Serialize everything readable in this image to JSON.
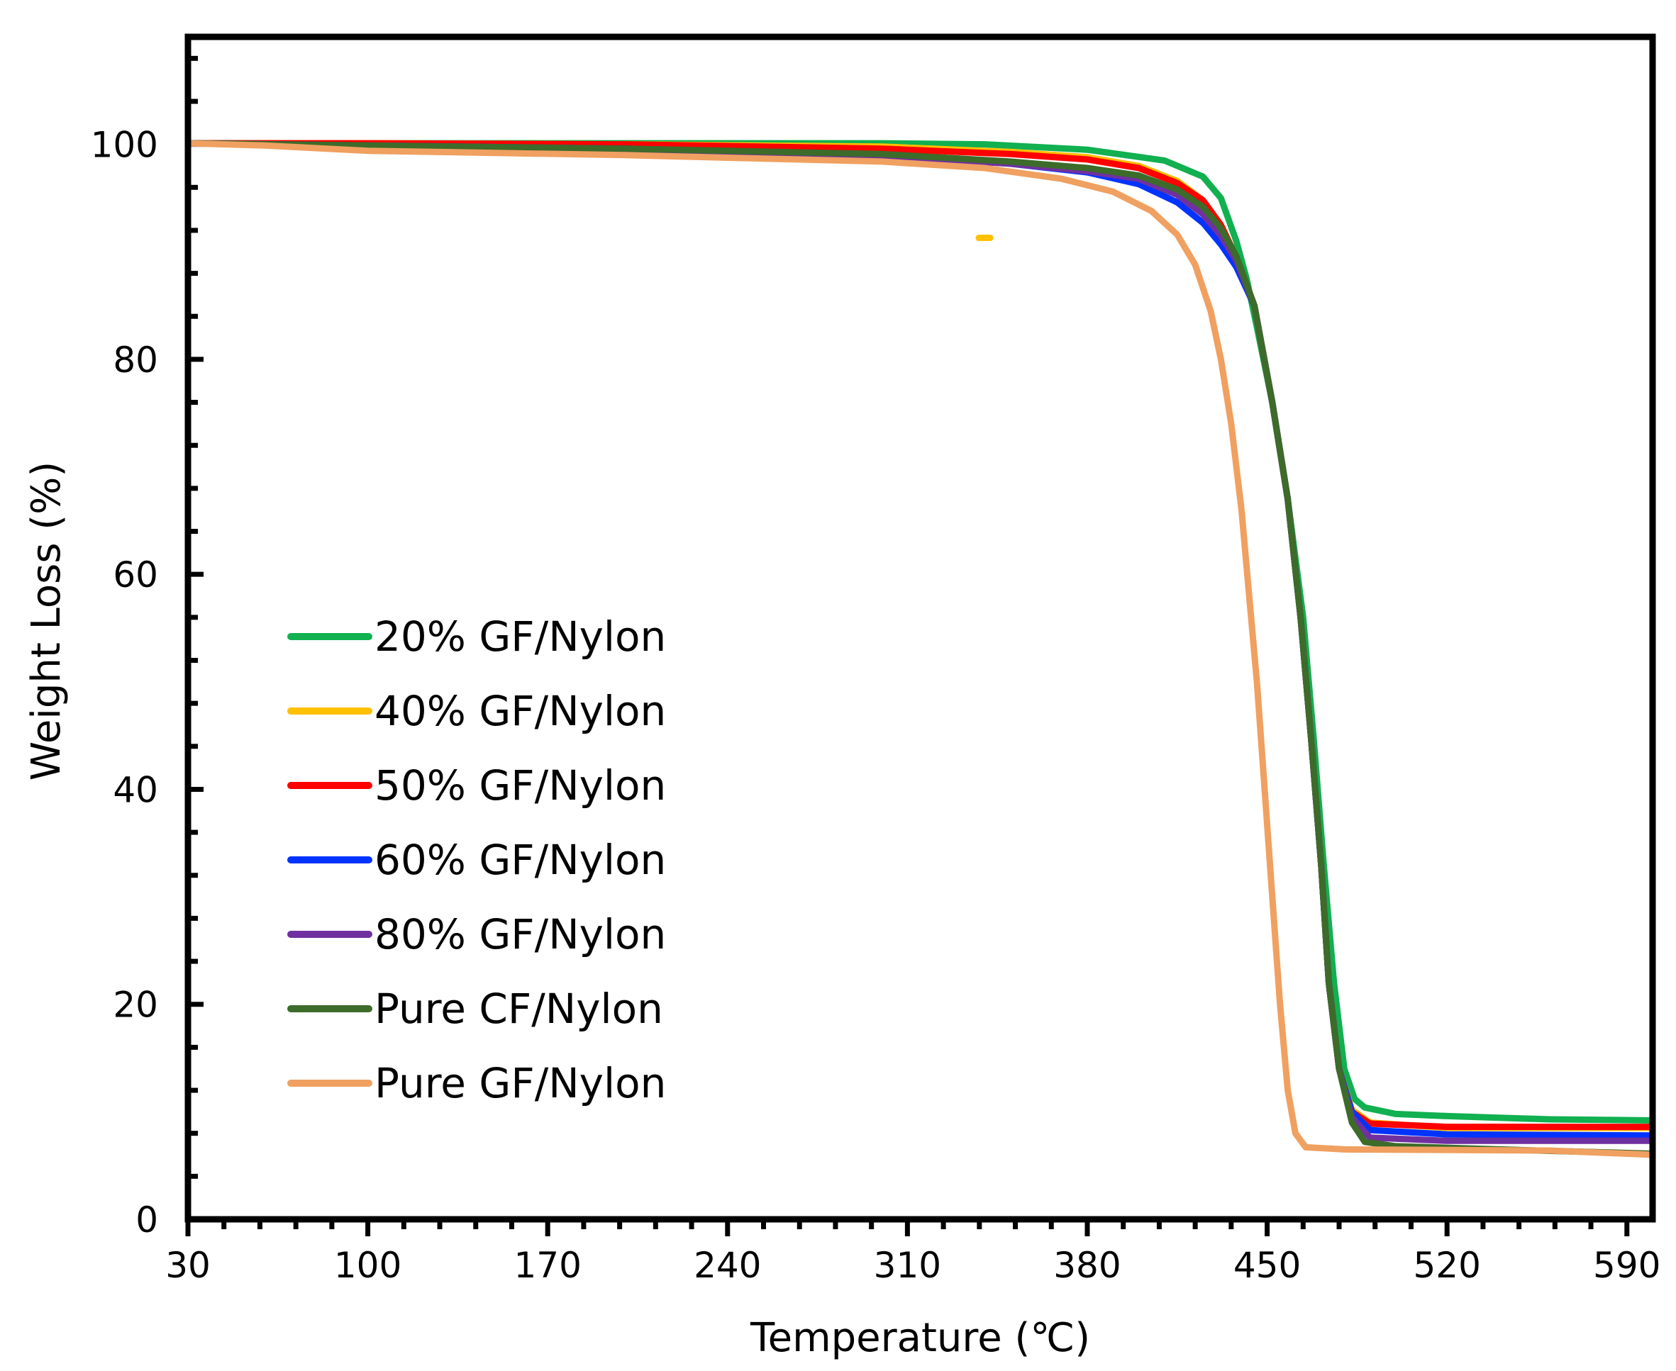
{
  "chart_data": {
    "type": "line",
    "title": "",
    "xlabel": "Temperature (℃)",
    "ylabel": "Weight Loss  (%)",
    "xlim": [
      30,
      600
    ],
    "ylim": [
      0,
      110
    ],
    "xticks": [
      30,
      100,
      170,
      240,
      310,
      380,
      450,
      520,
      590
    ],
    "yticks": [
      0,
      20,
      40,
      60,
      80,
      100
    ],
    "grid": false,
    "legend_position": "center-left",
    "series": [
      {
        "name": "20% GF/Nylon",
        "color": "#11b050",
        "points": [
          [
            30,
            100.1
          ],
          [
            100,
            100.1
          ],
          [
            200,
            100.1
          ],
          [
            300,
            100.1
          ],
          [
            340,
            100
          ],
          [
            380,
            99.5
          ],
          [
            410,
            98.5
          ],
          [
            425,
            97
          ],
          [
            432,
            95
          ],
          [
            438,
            91
          ],
          [
            442,
            87.5
          ],
          [
            446,
            83
          ],
          [
            452,
            76
          ],
          [
            458,
            67
          ],
          [
            464,
            56
          ],
          [
            468,
            45
          ],
          [
            472,
            33
          ],
          [
            476,
            22
          ],
          [
            480,
            14
          ],
          [
            484,
            11.2
          ],
          [
            488,
            10.4
          ],
          [
            500,
            9.8
          ],
          [
            520,
            9.6
          ],
          [
            560,
            9.3
          ],
          [
            600,
            9.2
          ]
        ]
      },
      {
        "name": "40% GF/Nylon",
        "color": "#ffc000",
        "points": [
          [
            30,
            100.1
          ],
          [
            100,
            100.1
          ],
          [
            200,
            100
          ],
          [
            300,
            99.8
          ],
          [
            350,
            99.3
          ],
          [
            380,
            98.8
          ],
          [
            400,
            98
          ],
          [
            415,
            96.6
          ],
          [
            425,
            94.8
          ],
          [
            432,
            92.5
          ],
          [
            438,
            89.5
          ],
          [
            445,
            85
          ],
          [
            452,
            76
          ],
          [
            458,
            67
          ],
          [
            463,
            56
          ],
          [
            467,
            45
          ],
          [
            471,
            33
          ],
          [
            474,
            22
          ],
          [
            478,
            14
          ],
          [
            483,
            10.2
          ],
          [
            490,
            9
          ],
          [
            520,
            8.5
          ],
          [
            600,
            8.5
          ]
        ]
      },
      {
        "name": "50% GF/Nylon",
        "color": "#ff0000",
        "points": [
          [
            30,
            100.1
          ],
          [
            100,
            100.1
          ],
          [
            200,
            100
          ],
          [
            300,
            99.6
          ],
          [
            350,
            99.1
          ],
          [
            380,
            98.6
          ],
          [
            400,
            97.8
          ],
          [
            415,
            96.4
          ],
          [
            425,
            94.8
          ],
          [
            432,
            92.5
          ],
          [
            438,
            89.5
          ],
          [
            445,
            85
          ],
          [
            452,
            76
          ],
          [
            458,
            67
          ],
          [
            463,
            56
          ],
          [
            467,
            45
          ],
          [
            471,
            33
          ],
          [
            474,
            22
          ],
          [
            478,
            14
          ],
          [
            483,
            10
          ],
          [
            490,
            8.9
          ],
          [
            520,
            8.6
          ],
          [
            600,
            8.6
          ]
        ]
      },
      {
        "name": "60% GF/Nylon",
        "color": "#0033ff",
        "points": [
          [
            30,
            100.1
          ],
          [
            100,
            99.9
          ],
          [
            200,
            99.6
          ],
          [
            300,
            99
          ],
          [
            350,
            98.2
          ],
          [
            380,
            97.4
          ],
          [
            400,
            96.3
          ],
          [
            415,
            94.6
          ],
          [
            425,
            92.7
          ],
          [
            432,
            90.7
          ],
          [
            438,
            88.6
          ],
          [
            445,
            85
          ],
          [
            452,
            76
          ],
          [
            458,
            67
          ],
          [
            463,
            56
          ],
          [
            467,
            45
          ],
          [
            471,
            33
          ],
          [
            474,
            22
          ],
          [
            478,
            14
          ],
          [
            483,
            10
          ],
          [
            490,
            8.3
          ],
          [
            520,
            7.9
          ],
          [
            600,
            7.8
          ]
        ]
      },
      {
        "name": "80% GF/Nylon",
        "color": "#7030a0",
        "points": [
          [
            30,
            100.1
          ],
          [
            100,
            99.8
          ],
          [
            200,
            99.4
          ],
          [
            300,
            98.9
          ],
          [
            350,
            98.2
          ],
          [
            380,
            97.5
          ],
          [
            400,
            96.8
          ],
          [
            415,
            95.3
          ],
          [
            425,
            93.5
          ],
          [
            432,
            91.5
          ],
          [
            438,
            89.2
          ],
          [
            445,
            85
          ],
          [
            452,
            76
          ],
          [
            458,
            67
          ],
          [
            463,
            56
          ],
          [
            467,
            45
          ],
          [
            471,
            33
          ],
          [
            474,
            22
          ],
          [
            478,
            14
          ],
          [
            483,
            9.5
          ],
          [
            490,
            7.6
          ],
          [
            520,
            7.3
          ],
          [
            600,
            7.3
          ]
        ]
      },
      {
        "name": "Pure CF/Nylon",
        "color": "#3d6b2a",
        "points": [
          [
            30,
            100.1
          ],
          [
            100,
            99.9
          ],
          [
            200,
            99.6
          ],
          [
            300,
            99.1
          ],
          [
            350,
            98.4
          ],
          [
            380,
            97.8
          ],
          [
            400,
            97.1
          ],
          [
            415,
            95.8
          ],
          [
            425,
            94.2
          ],
          [
            432,
            92.2
          ],
          [
            438,
            89.6
          ],
          [
            445,
            85
          ],
          [
            452,
            76
          ],
          [
            458,
            67
          ],
          [
            463,
            56
          ],
          [
            467,
            45
          ],
          [
            471,
            33
          ],
          [
            474,
            22
          ],
          [
            478,
            14
          ],
          [
            483,
            9
          ],
          [
            488,
            7.2
          ],
          [
            500,
            6.8
          ],
          [
            540,
            6.5
          ],
          [
            600,
            6.1
          ]
        ]
      },
      {
        "name": "Pure GF/Nylon",
        "color": "#f0a060",
        "points": [
          [
            30,
            100.1
          ],
          [
            60,
            99.9
          ],
          [
            100,
            99.4
          ],
          [
            200,
            99
          ],
          [
            300,
            98.4
          ],
          [
            340,
            97.8
          ],
          [
            370,
            96.8
          ],
          [
            390,
            95.6
          ],
          [
            405,
            93.8
          ],
          [
            415,
            91.6
          ],
          [
            422,
            88.8
          ],
          [
            428,
            84.5
          ],
          [
            432,
            80
          ],
          [
            436,
            74
          ],
          [
            440,
            66
          ],
          [
            443,
            58
          ],
          [
            446,
            50
          ],
          [
            449,
            40
          ],
          [
            452,
            30
          ],
          [
            455,
            20
          ],
          [
            458,
            12
          ],
          [
            461,
            8
          ],
          [
            465,
            6.7
          ],
          [
            480,
            6.5
          ],
          [
            560,
            6.4
          ],
          [
            600,
            6
          ]
        ]
      }
    ],
    "annotations": [
      {
        "type": "marker",
        "x": 340,
        "y": 91.3,
        "color": "#ffc000"
      }
    ]
  }
}
